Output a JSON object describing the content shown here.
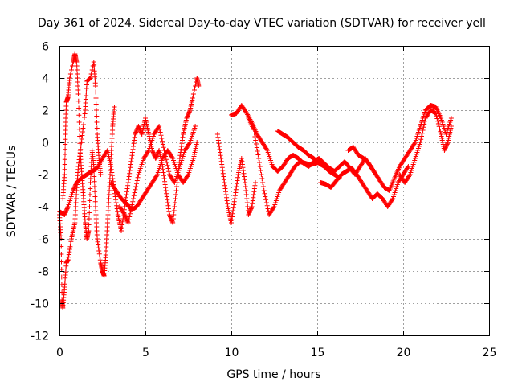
{
  "chart_data": {
    "type": "scatter",
    "title": "Day 361 of 2024, Sidereal Day-to-day VTEC variation (SDTVAR) for receiver yell",
    "xlabel": "GPS time / hours",
    "ylabel": "SDTVAR / TECUs",
    "xlim": [
      0,
      25
    ],
    "ylim": [
      -12,
      6
    ],
    "xticks": [
      0,
      5,
      10,
      15,
      20,
      25
    ],
    "yticks": [
      -12,
      -10,
      -8,
      -6,
      -4,
      -2,
      0,
      2,
      4,
      6
    ],
    "grid": true,
    "marker": "+",
    "color": "#ff0000",
    "series": [
      {
        "name": "SDTVAR",
        "tracks": [
          [
            [
              0.0,
              -4.5
            ],
            [
              0.1,
              -6.0
            ],
            [
              0.15,
              -9.8
            ],
            [
              0.2,
              -10.3
            ],
            [
              0.3,
              -9.0
            ],
            [
              0.4,
              -7.5
            ],
            [
              0.5,
              -7.3
            ],
            [
              0.7,
              -6.0
            ],
            [
              0.9,
              -5.0
            ],
            [
              1.0,
              -3.0
            ],
            [
              1.1,
              -1.5
            ],
            [
              1.3,
              0.2
            ],
            [
              1.5,
              2.0
            ],
            [
              1.6,
              3.8
            ],
            [
              1.8,
              4.0
            ],
            [
              2.0,
              5.0
            ],
            [
              2.1,
              3.5
            ],
            [
              2.2,
              0.5
            ],
            [
              2.3,
              -1.0
            ],
            [
              2.4,
              -2.0
            ]
          ],
          [
            [
              0.2,
              -3.5
            ],
            [
              0.3,
              -2.0
            ],
            [
              0.35,
              0.5
            ],
            [
              0.4,
              2.5
            ],
            [
              0.5,
              2.8
            ],
            [
              0.6,
              4.0
            ],
            [
              0.8,
              5.0
            ],
            [
              0.9,
              5.5
            ],
            [
              1.0,
              5.0
            ],
            [
              1.1,
              3.0
            ],
            [
              1.2,
              -0.5
            ],
            [
              1.3,
              -2.0
            ],
            [
              1.4,
              -3.5
            ],
            [
              1.5,
              -5.0
            ],
            [
              1.6,
              -6.0
            ],
            [
              1.7,
              -5.5
            ],
            [
              1.8,
              -2.5
            ],
            [
              1.9,
              -0.5
            ],
            [
              2.0,
              -1.5
            ],
            [
              2.1,
              -4.0
            ],
            [
              2.2,
              -6.0
            ],
            [
              2.4,
              -7.5
            ],
            [
              2.5,
              -8.0
            ],
            [
              2.6,
              -8.3
            ],
            [
              2.7,
              -7.0
            ],
            [
              2.8,
              -5.0
            ],
            [
              2.9,
              -3.0
            ],
            [
              3.0,
              -1.0
            ],
            [
              3.1,
              1.0
            ],
            [
              3.2,
              2.2
            ]
          ],
          [
            [
              0.0,
              -4.3
            ],
            [
              0.3,
              -4.5
            ],
            [
              0.5,
              -4.0
            ],
            [
              0.8,
              -3.0
            ],
            [
              1.0,
              -2.5
            ],
            [
              1.3,
              -2.2
            ],
            [
              1.6,
              -2.0
            ],
            [
              1.9,
              -1.8
            ],
            [
              2.2,
              -1.6
            ],
            [
              2.5,
              -1.0
            ],
            [
              2.8,
              -0.5
            ],
            [
              3.0,
              -1.5
            ],
            [
              3.2,
              -3.0
            ],
            [
              3.4,
              -4.5
            ],
            [
              3.6,
              -5.5
            ],
            [
              3.8,
              -4.0
            ],
            [
              4.0,
              -2.5
            ],
            [
              4.2,
              -1.0
            ],
            [
              4.4,
              0.5
            ],
            [
              4.6,
              1.0
            ],
            [
              4.8,
              0.5
            ],
            [
              5.0,
              1.5
            ],
            [
              5.2,
              0.5
            ],
            [
              5.4,
              -0.5
            ],
            [
              5.6,
              -1.0
            ],
            [
              5.8,
              -0.5
            ],
            [
              6.0,
              -1.5
            ],
            [
              6.2,
              -3.0
            ],
            [
              6.4,
              -4.5
            ],
            [
              6.6,
              -5.0
            ],
            [
              6.8,
              -3.0
            ],
            [
              7.0,
              -1.0
            ],
            [
              7.2,
              0.5
            ],
            [
              7.4,
              1.5
            ],
            [
              7.6,
              2.0
            ],
            [
              7.8,
              3.0
            ],
            [
              8.0,
              4.0
            ],
            [
              8.1,
              3.5
            ]
          ],
          [
            [
              3.0,
              -2.5
            ],
            [
              3.3,
              -3.0
            ],
            [
              3.6,
              -3.5
            ],
            [
              3.9,
              -3.8
            ],
            [
              4.2,
              -4.2
            ],
            [
              4.5,
              -4.0
            ],
            [
              4.8,
              -3.5
            ],
            [
              5.1,
              -3.0
            ],
            [
              5.4,
              -2.5
            ],
            [
              5.7,
              -2.0
            ],
            [
              6.0,
              -1.0
            ],
            [
              6.3,
              -0.5
            ],
            [
              6.6,
              -1.0
            ],
            [
              6.9,
              -2.0
            ],
            [
              7.2,
              -2.5
            ],
            [
              7.5,
              -2.0
            ],
            [
              7.8,
              -1.0
            ],
            [
              8.0,
              0.0
            ]
          ],
          [
            [
              3.5,
              -4.0
            ],
            [
              3.8,
              -4.5
            ],
            [
              4.0,
              -5.0
            ],
            [
              4.3,
              -3.5
            ],
            [
              4.6,
              -2.0
            ],
            [
              4.9,
              -1.0
            ],
            [
              5.2,
              -0.5
            ],
            [
              5.5,
              0.5
            ],
            [
              5.8,
              1.0
            ],
            [
              6.1,
              -0.5
            ],
            [
              6.4,
              -2.0
            ],
            [
              6.7,
              -2.5
            ],
            [
              7.0,
              -1.5
            ],
            [
              7.3,
              -0.5
            ],
            [
              7.6,
              0.0
            ],
            [
              7.9,
              1.0
            ]
          ],
          [
            [
              9.2,
              0.5
            ],
            [
              9.4,
              -1.0
            ],
            [
              9.6,
              -2.5
            ],
            [
              9.8,
              -4.0
            ],
            [
              10.0,
              -5.0
            ],
            [
              10.2,
              -3.5
            ],
            [
              10.4,
              -2.0
            ],
            [
              10.6,
              -1.0
            ],
            [
              10.8,
              -2.5
            ],
            [
              11.0,
              -4.5
            ],
            [
              11.2,
              -4.0
            ],
            [
              11.4,
              -2.5
            ]
          ],
          [
            [
              10.0,
              1.7
            ],
            [
              10.3,
              1.8
            ],
            [
              10.6,
              2.3
            ],
            [
              10.9,
              1.8
            ],
            [
              11.2,
              1.2
            ],
            [
              11.5,
              0.5
            ],
            [
              11.8,
              0.0
            ],
            [
              12.1,
              -0.5
            ],
            [
              12.4,
              -1.5
            ],
            [
              12.7,
              -1.8
            ],
            [
              13.0,
              -1.5
            ],
            [
              13.3,
              -1.0
            ],
            [
              13.6,
              -0.8
            ],
            [
              13.9,
              -1.0
            ],
            [
              14.2,
              -1.3
            ],
            [
              14.5,
              -1.5
            ],
            [
              14.8,
              -1.2
            ],
            [
              15.1,
              -1.0
            ],
            [
              15.4,
              -1.3
            ],
            [
              15.7,
              -1.6
            ],
            [
              16.0,
              -1.8
            ],
            [
              16.3,
              -1.5
            ],
            [
              16.6,
              -1.2
            ],
            [
              16.9,
              -1.6
            ],
            [
              17.2,
              -2.0
            ],
            [
              17.5,
              -1.5
            ],
            [
              17.8,
              -1.0
            ],
            [
              18.1,
              -1.5
            ],
            [
              18.4,
              -2.0
            ]
          ],
          [
            [
              11.0,
              1.5
            ],
            [
              11.3,
              0.8
            ],
            [
              11.6,
              -1.0
            ],
            [
              11.9,
              -3.0
            ],
            [
              12.2,
              -4.5
            ],
            [
              12.5,
              -4.0
            ],
            [
              12.8,
              -3.0
            ],
            [
              13.1,
              -2.5
            ],
            [
              13.4,
              -2.0
            ],
            [
              13.7,
              -1.5
            ],
            [
              14.0,
              -1.2
            ],
            [
              14.3,
              -1.3
            ],
            [
              14.6,
              -1.4
            ],
            [
              14.9,
              -1.3
            ],
            [
              15.2,
              -1.2
            ]
          ],
          [
            [
              12.7,
              0.7
            ],
            [
              13.0,
              0.5
            ],
            [
              13.3,
              0.3
            ],
            [
              13.6,
              0.0
            ],
            [
              13.9,
              -0.3
            ],
            [
              14.2,
              -0.5
            ],
            [
              14.5,
              -0.8
            ],
            [
              14.8,
              -1.0
            ],
            [
              15.1,
              -1.3
            ],
            [
              15.4,
              -1.5
            ],
            [
              15.7,
              -1.8
            ],
            [
              16.0,
              -2.0
            ],
            [
              16.3,
              -2.2
            ]
          ],
          [
            [
              15.2,
              -2.5
            ],
            [
              15.5,
              -2.6
            ],
            [
              15.8,
              -2.8
            ],
            [
              16.1,
              -2.4
            ],
            [
              16.4,
              -2.0
            ],
            [
              16.7,
              -1.8
            ],
            [
              17.0,
              -1.6
            ],
            [
              17.3,
              -2.0
            ],
            [
              17.6,
              -2.5
            ],
            [
              17.9,
              -3.0
            ],
            [
              18.2,
              -3.5
            ],
            [
              18.5,
              -3.2
            ],
            [
              18.8,
              -3.5
            ],
            [
              19.1,
              -4.0
            ],
            [
              19.4,
              -3.5
            ],
            [
              19.7,
              -2.5
            ],
            [
              20.0,
              -2.0
            ],
            [
              20.3,
              -1.5
            ]
          ],
          [
            [
              16.8,
              -0.5
            ],
            [
              17.1,
              -0.3
            ],
            [
              17.4,
              -0.8
            ],
            [
              17.7,
              -1.0
            ],
            [
              18.0,
              -1.3
            ],
            [
              18.3,
              -1.8
            ],
            [
              18.6,
              -2.3
            ],
            [
              18.9,
              -2.8
            ],
            [
              19.2,
              -3.0
            ],
            [
              19.5,
              -2.2
            ],
            [
              19.8,
              -1.5
            ],
            [
              20.1,
              -1.0
            ],
            [
              20.4,
              -0.5
            ],
            [
              20.7,
              0.0
            ],
            [
              21.0,
              1.0
            ],
            [
              21.3,
              2.0
            ],
            [
              21.6,
              2.3
            ],
            [
              21.9,
              2.2
            ],
            [
              22.2,
              1.5
            ],
            [
              22.5,
              0.5
            ],
            [
              22.8,
              1.5
            ]
          ],
          [
            [
              19.8,
              -2.0
            ],
            [
              20.1,
              -2.5
            ],
            [
              20.4,
              -2.0
            ],
            [
              20.7,
              -1.0
            ],
            [
              21.0,
              0.0
            ],
            [
              21.3,
              1.5
            ],
            [
              21.6,
              2.0
            ],
            [
              21.9,
              1.8
            ],
            [
              22.2,
              0.5
            ],
            [
              22.4,
              -0.5
            ],
            [
              22.6,
              0.0
            ],
            [
              22.8,
              1.0
            ]
          ]
        ]
      }
    ]
  }
}
